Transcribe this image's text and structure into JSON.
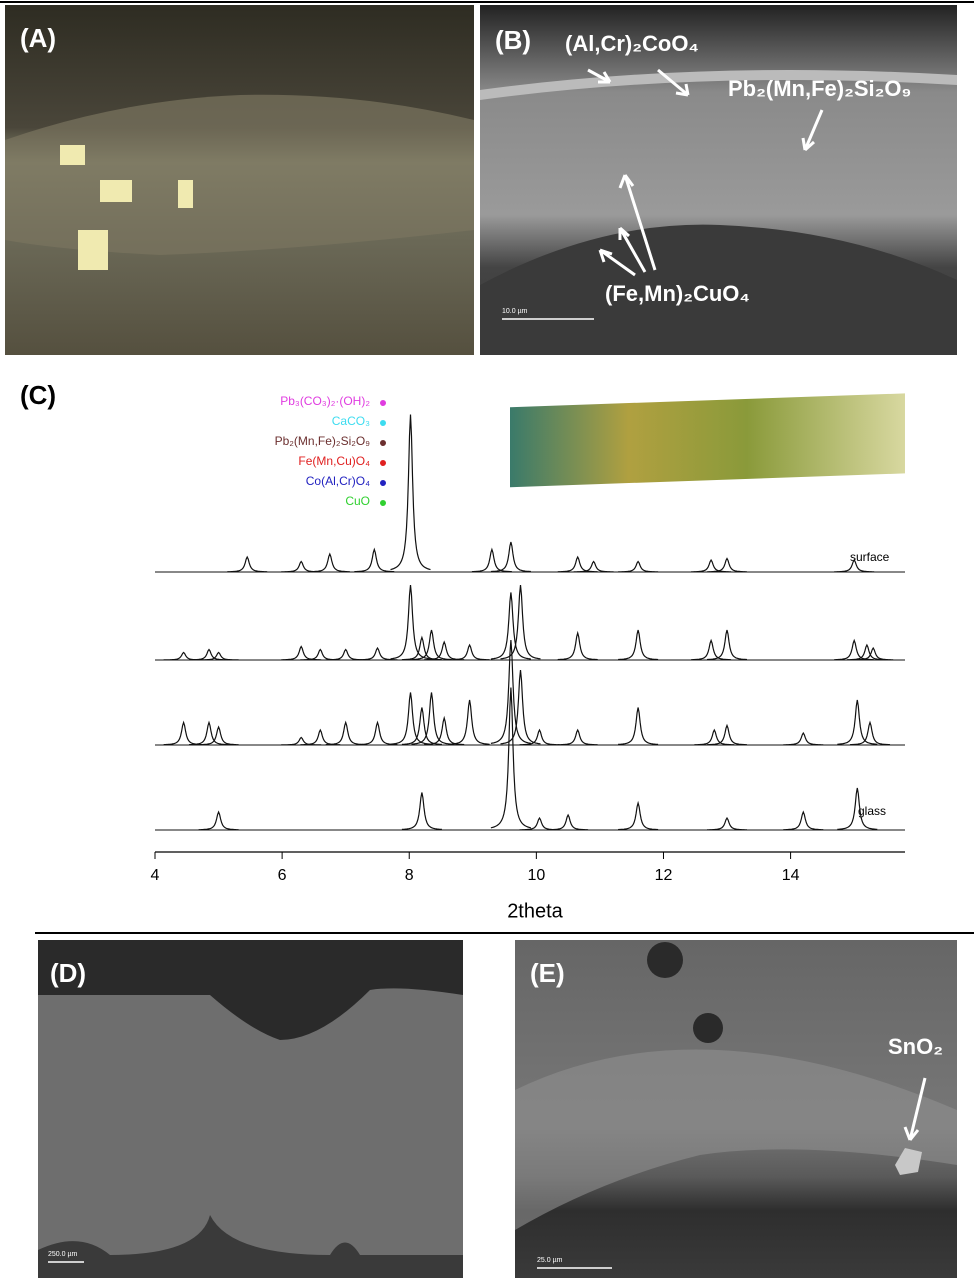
{
  "panels": {
    "a": {
      "label": "(A)"
    },
    "b": {
      "label": "(B)",
      "annotations": [
        "(Al,Cr)₂CoO₄",
        "Pb₂(Mn,Fe)₂Si₂O₉",
        "(Fe,Mn)₂CuO₄"
      ],
      "scale_bar": "10.0 µm"
    },
    "c": {
      "label": "(C)"
    },
    "d": {
      "label": "(D)",
      "scale_bar": "250.0 µm"
    },
    "e": {
      "label": "(E)",
      "annotations": [
        "SnO₂"
      ],
      "scale_bar": "25.0 µm"
    }
  },
  "chart_data": {
    "type": "line",
    "xlabel": "2theta",
    "xlim": [
      4,
      15.8
    ],
    "xticks": [
      4,
      6,
      8,
      10,
      12,
      14
    ],
    "phases": [
      {
        "name": "Pb₃(CO₃)₂·(OH)₂",
        "color": "#e03ce0"
      },
      {
        "name": "CaCO₃",
        "color": "#3ddcf0"
      },
      {
        "name": "Pb₂(Mn,Fe)₂Si₂O₉",
        "color": "#6b2f2f"
      },
      {
        "name": "Fe(Mn,Cu)O₄",
        "color": "#e02020"
      },
      {
        "name": "Co(Al,Cr)O₄",
        "color": "#2222c0"
      },
      {
        "name": "CuO",
        "color": "#30d030"
      }
    ],
    "trace_labels": [
      "surface",
      "glass"
    ],
    "series": [
      {
        "x": [
          5.45,
          6.3,
          6.75,
          7.45,
          8.02,
          9.3,
          9.6,
          10.65,
          10.9,
          11.6,
          12.75,
          13.0,
          15.0
        ],
        "values": [
          0.1,
          0.07,
          0.12,
          0.15,
          1.05,
          0.15,
          0.2,
          0.1,
          0.07,
          0.07,
          0.08,
          0.09,
          0.08
        ]
      },
      {
        "x": [
          4.45,
          4.85,
          5.0,
          6.3,
          6.6,
          7.0,
          7.5,
          8.02,
          8.2,
          8.35,
          8.55,
          8.95,
          9.6,
          9.75,
          10.65,
          11.6,
          12.75,
          13.0,
          15.0,
          15.2,
          15.3
        ],
        "values": [
          0.05,
          0.07,
          0.05,
          0.09,
          0.07,
          0.07,
          0.08,
          0.5,
          0.15,
          0.2,
          0.12,
          0.1,
          0.45,
          0.5,
          0.18,
          0.2,
          0.13,
          0.2,
          0.13,
          0.1,
          0.08
        ]
      },
      {
        "x": [
          4.45,
          4.85,
          5.0,
          6.3,
          6.6,
          7.0,
          7.5,
          8.02,
          8.2,
          8.35,
          8.55,
          8.95,
          9.6,
          9.75,
          10.05,
          10.65,
          11.6,
          12.8,
          13.0,
          14.2,
          15.05,
          15.25
        ],
        "values": [
          0.15,
          0.15,
          0.12,
          0.05,
          0.1,
          0.15,
          0.15,
          0.35,
          0.25,
          0.35,
          0.18,
          0.3,
          0.7,
          0.5,
          0.1,
          0.1,
          0.25,
          0.1,
          0.13,
          0.08,
          0.3,
          0.15
        ]
      },
      {
        "x": [
          5.0,
          8.2,
          9.6,
          10.05,
          10.5,
          11.6,
          13.0,
          14.2,
          15.05
        ],
        "values": [
          0.12,
          0.25,
          0.95,
          0.08,
          0.1,
          0.18,
          0.08,
          0.12,
          0.28
        ]
      }
    ]
  }
}
